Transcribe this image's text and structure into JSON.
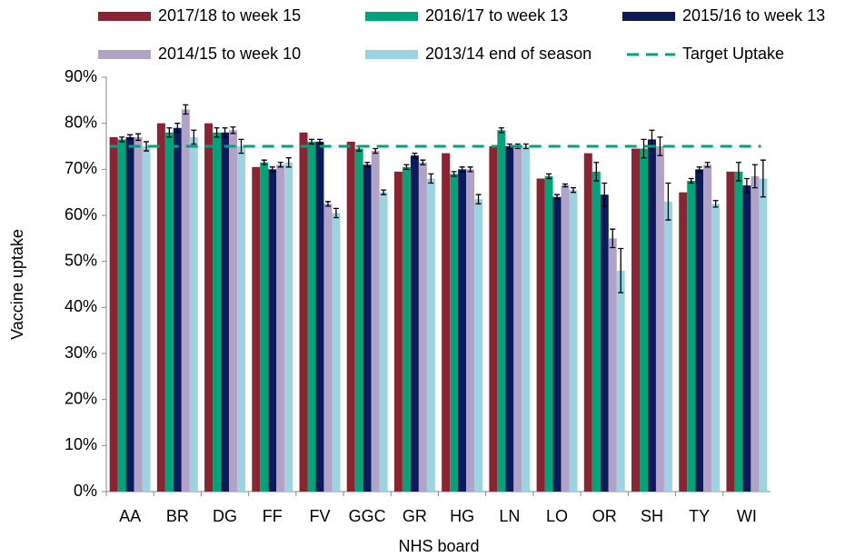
{
  "chart_data": {
    "type": "bar",
    "x_label": "NHS board",
    "y_label": "Vaccine uptake",
    "categories": [
      "AA",
      "BR",
      "DG",
      "FF",
      "FV",
      "GGC",
      "GR",
      "HG",
      "LN",
      "LO",
      "OR",
      "SH",
      "TY",
      "WI"
    ],
    "series": [
      {
        "name": "2017/18 to week 15",
        "color": "#8b2332",
        "values": [
          77,
          80,
          80,
          70.5,
          78,
          76,
          69.5,
          73.5,
          75,
          68,
          73.5,
          74.5,
          65,
          69.5
        ]
      },
      {
        "name": "2016/17 to week 13",
        "color": "#00a37a",
        "values": [
          76.5,
          78,
          78,
          71.5,
          76,
          74.5,
          70.5,
          69,
          78.5,
          68.5,
          69.5,
          74.5,
          67.5,
          69.5
        ],
        "errors": [
          0.5,
          1,
          1,
          0.5,
          0.5,
          0.5,
          0.5,
          0.5,
          0.5,
          0.5,
          2,
          2,
          0.5,
          2
        ]
      },
      {
        "name": "2015/16 to week 13",
        "color": "#0c1a5a",
        "values": [
          77,
          79,
          78,
          70,
          76,
          71,
          73,
          70,
          75,
          64,
          64.5,
          76.5,
          70,
          66.5
        ],
        "errors": [
          0.5,
          1,
          1,
          0.5,
          0.5,
          0.5,
          0.5,
          0.5,
          0.5,
          0.5,
          2.5,
          2,
          0.5,
          1.5
        ]
      },
      {
        "name": "2014/15 to week 10",
        "color": "#b3a2c7",
        "values": [
          77,
          83,
          78.5,
          71,
          62.5,
          74,
          71.5,
          70,
          75,
          66.5,
          55,
          75,
          71,
          68.5
        ],
        "errors": [
          0.7,
          1,
          0.7,
          0.5,
          0.5,
          0.5,
          0.5,
          0.5,
          0.5,
          0.3,
          2,
          2,
          0.5,
          2.5
        ]
      },
      {
        "name": "2013/14 end of season",
        "color": "#9dd3e0",
        "values": [
          75,
          77,
          75,
          71.5,
          60.5,
          65,
          68,
          63.5,
          75,
          65.5,
          48,
          63,
          62.5,
          68
        ],
        "errors": [
          1,
          1.5,
          1.5,
          1,
          1,
          0.5,
          1,
          1,
          0.5,
          0.5,
          4.8,
          4,
          0.7,
          4
        ]
      }
    ],
    "target": {
      "name": "Target Uptake",
      "value": 75,
      "color": "#00a37a"
    },
    "ylim": [
      0,
      90
    ],
    "yticks": [
      {
        "value": 0,
        "label": "0%"
      },
      {
        "value": 10,
        "label": "10%"
      },
      {
        "value": 20,
        "label": "20%"
      },
      {
        "value": 30,
        "label": "30%"
      },
      {
        "value": 40,
        "label": "40%"
      },
      {
        "value": 50,
        "label": "50%"
      },
      {
        "value": 60,
        "label": "60%"
      },
      {
        "value": 70,
        "label": "70%"
      },
      {
        "value": 80,
        "label": "80%"
      },
      {
        "value": 90,
        "label": "90%"
      }
    ],
    "grid": false
  }
}
